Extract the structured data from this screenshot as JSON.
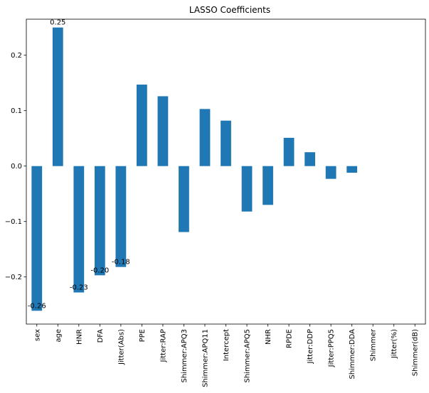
{
  "chart_data": {
    "type": "bar",
    "title": "LASSO Coefficients",
    "xlabel": "",
    "ylabel": "",
    "categories": [
      "sex",
      "age",
      "HNR",
      "DFA",
      "Jitter(Abs)",
      "PPE",
      "Jitter:RAP",
      "Shimmer:APQ3",
      "Shimmer:APQ11",
      "Intercept",
      "Shimmer:APQ5",
      "NHR",
      "RPDE",
      "Jitter:DDP",
      "Jitter:PPQ5",
      "Shimmer:DDA",
      "Shimmer",
      "Jitter(%)",
      "Shimmer(dB)"
    ],
    "values": [
      -0.261,
      0.25,
      -0.228,
      -0.197,
      -0.182,
      0.147,
      0.126,
      -0.119,
      0.103,
      0.082,
      -0.082,
      -0.07,
      0.051,
      0.025,
      -0.023,
      -0.012,
      0.0,
      0.0,
      0.0
    ],
    "data_labels": [
      "-0.26",
      "0.25",
      "-0.23",
      "-0.20",
      "-0.18",
      "",
      "",
      "",
      "",
      "",
      "",
      "",
      "",
      "",
      "",
      "",
      "",
      "",
      ""
    ],
    "ylim": [
      -0.285,
      0.265
    ],
    "yticks": [
      -0.2,
      -0.1,
      0.0,
      0.1,
      0.2
    ],
    "ytick_labels": [
      "−0.2",
      "−0.1",
      "0.0",
      "0.1",
      "0.2"
    ],
    "bar_color": "#1f77b4",
    "grid": false,
    "legend": "none"
  }
}
